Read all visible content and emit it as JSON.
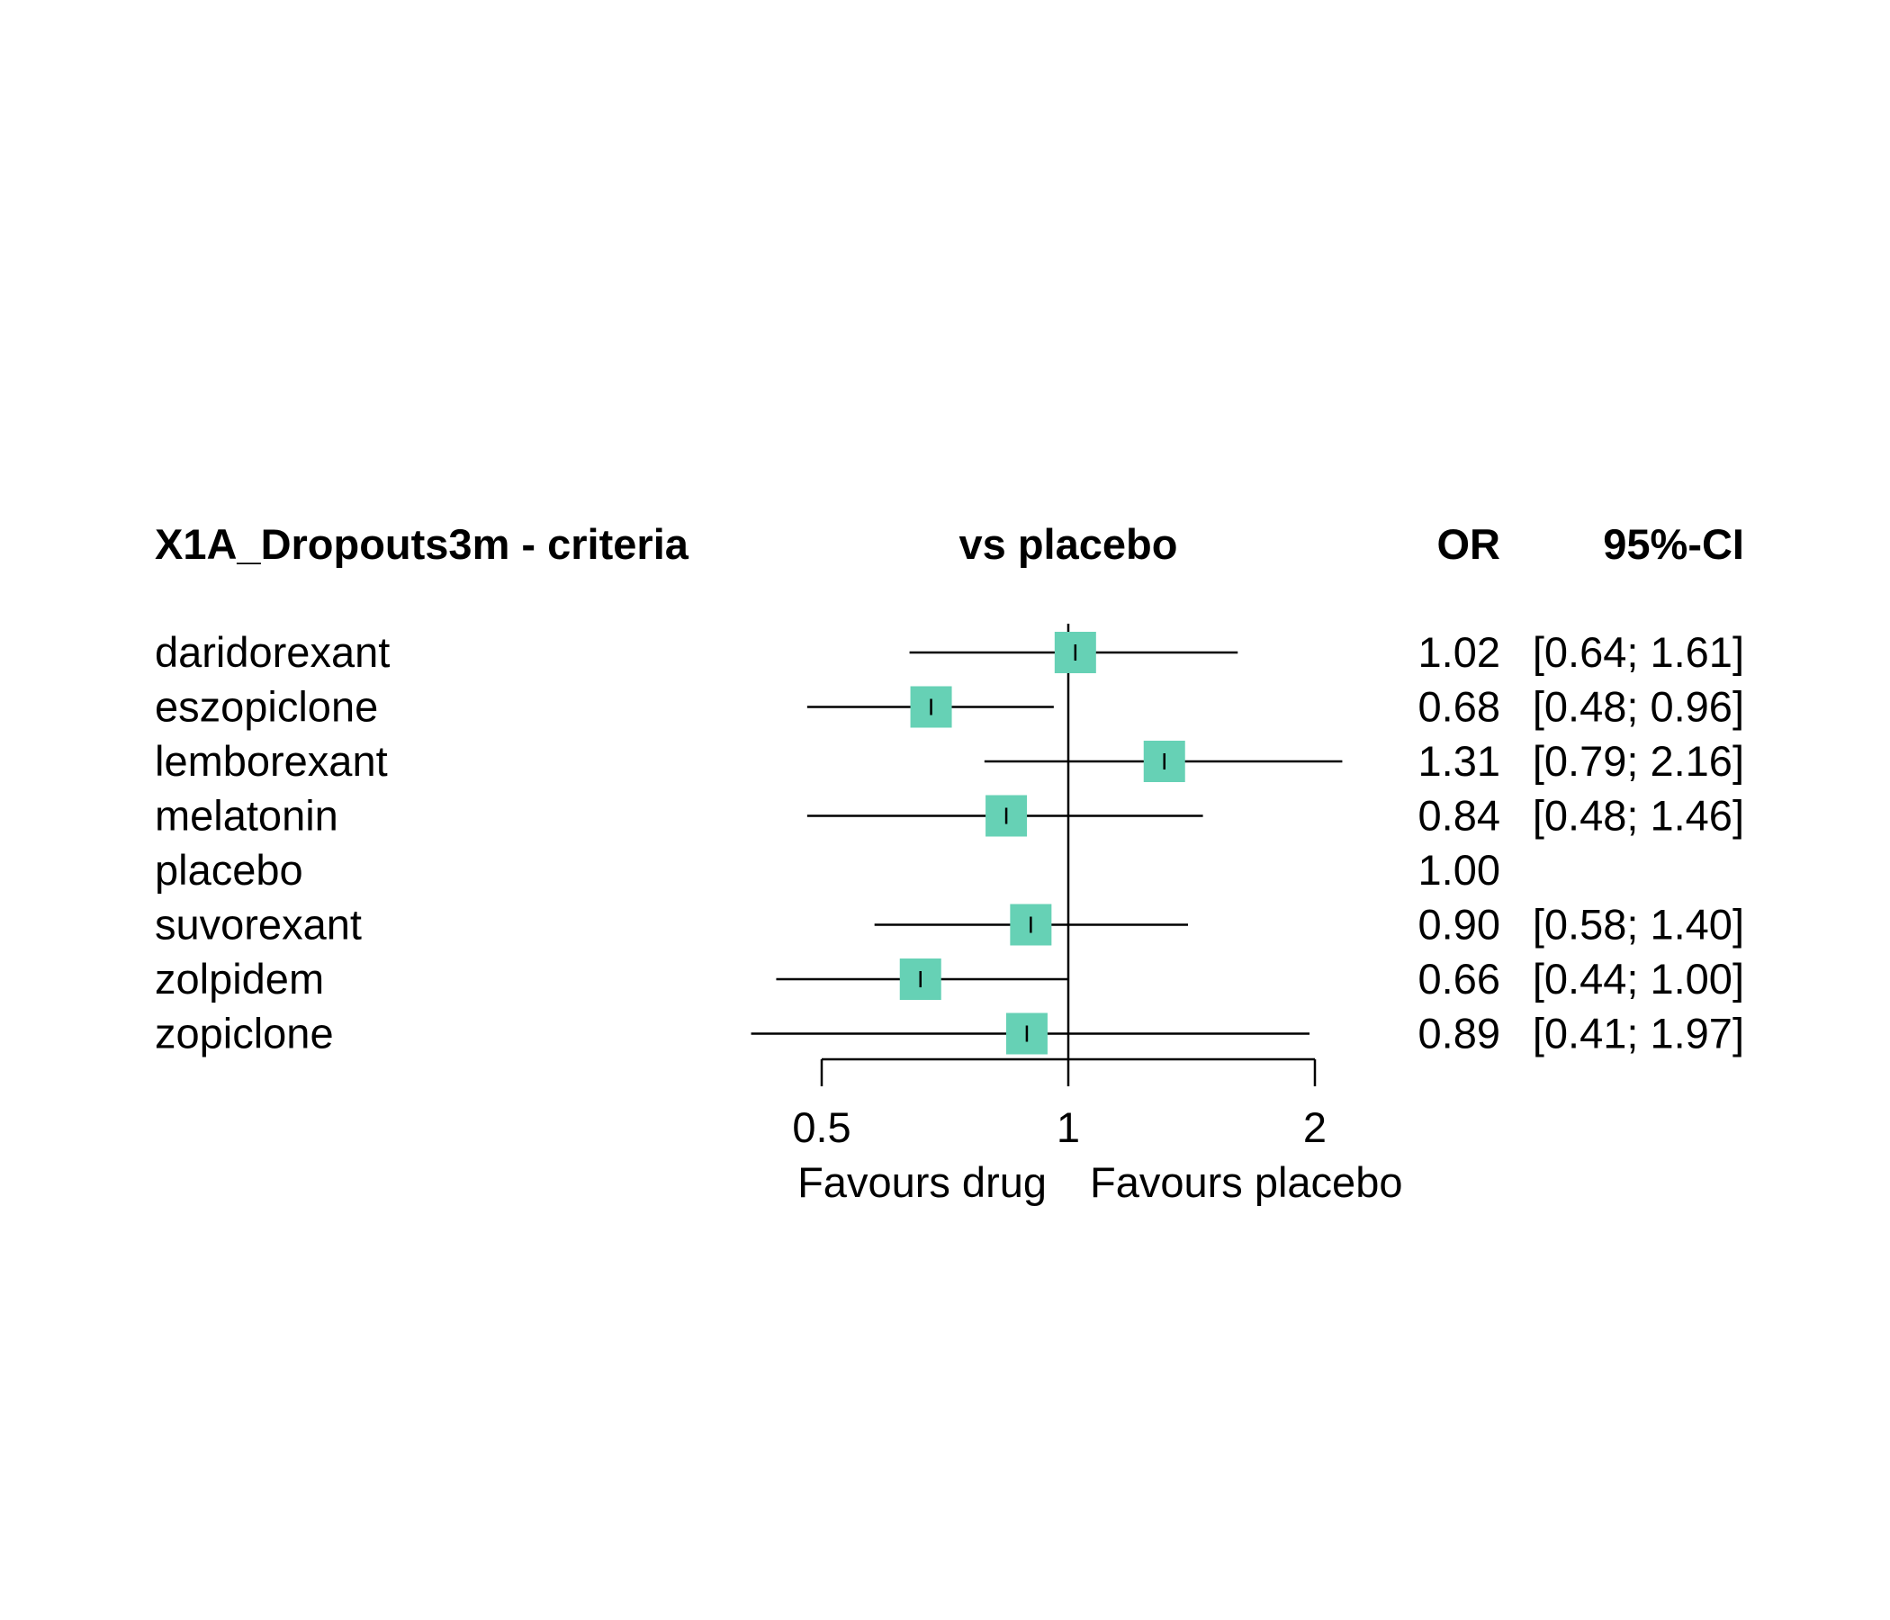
{
  "chart_data": {
    "type": "forest",
    "headers": {
      "study": "X1A_Dropouts3m - criteria",
      "comparison": "vs placebo",
      "effect": "OR",
      "ci": "95%-CI"
    },
    "rows": [
      {
        "name": "daridorexant",
        "or": 1.02,
        "lower": 0.64,
        "upper": 1.61,
        "or_text": "1.02",
        "ci_text": "[0.64; 1.61]"
      },
      {
        "name": "eszopiclone",
        "or": 0.68,
        "lower": 0.48,
        "upper": 0.96,
        "or_text": "0.68",
        "ci_text": "[0.48; 0.96]"
      },
      {
        "name": "lemborexant",
        "or": 1.31,
        "lower": 0.79,
        "upper": 2.16,
        "or_text": "1.31",
        "ci_text": "[0.79; 2.16]"
      },
      {
        "name": "melatonin",
        "or": 0.84,
        "lower": 0.48,
        "upper": 1.46,
        "or_text": "0.84",
        "ci_text": "[0.48; 1.46]"
      },
      {
        "name": "placebo",
        "or": 1.0,
        "lower": null,
        "upper": null,
        "or_text": "1.00",
        "ci_text": ""
      },
      {
        "name": "suvorexant",
        "or": 0.9,
        "lower": 0.58,
        "upper": 1.4,
        "or_text": "0.90",
        "ci_text": "[0.58; 1.40]"
      },
      {
        "name": "zolpidem",
        "or": 0.66,
        "lower": 0.44,
        "upper": 1.0,
        "or_text": "0.66",
        "ci_text": "[0.44; 1.00]"
      },
      {
        "name": "zopiclone",
        "or": 0.89,
        "lower": 0.41,
        "upper": 1.97,
        "or_text": "0.89",
        "ci_text": "[0.41; 1.97]"
      }
    ],
    "x_axis": {
      "scale": "log",
      "ticks": [
        0.5,
        1,
        2
      ],
      "tick_labels": [
        "0.5",
        "1",
        "2"
      ],
      "reference_line": 1,
      "label_left": "Favours drug",
      "label_right": "Favours placebo"
    },
    "colors": {
      "marker": "#66d1b5",
      "line": "#000000"
    }
  }
}
